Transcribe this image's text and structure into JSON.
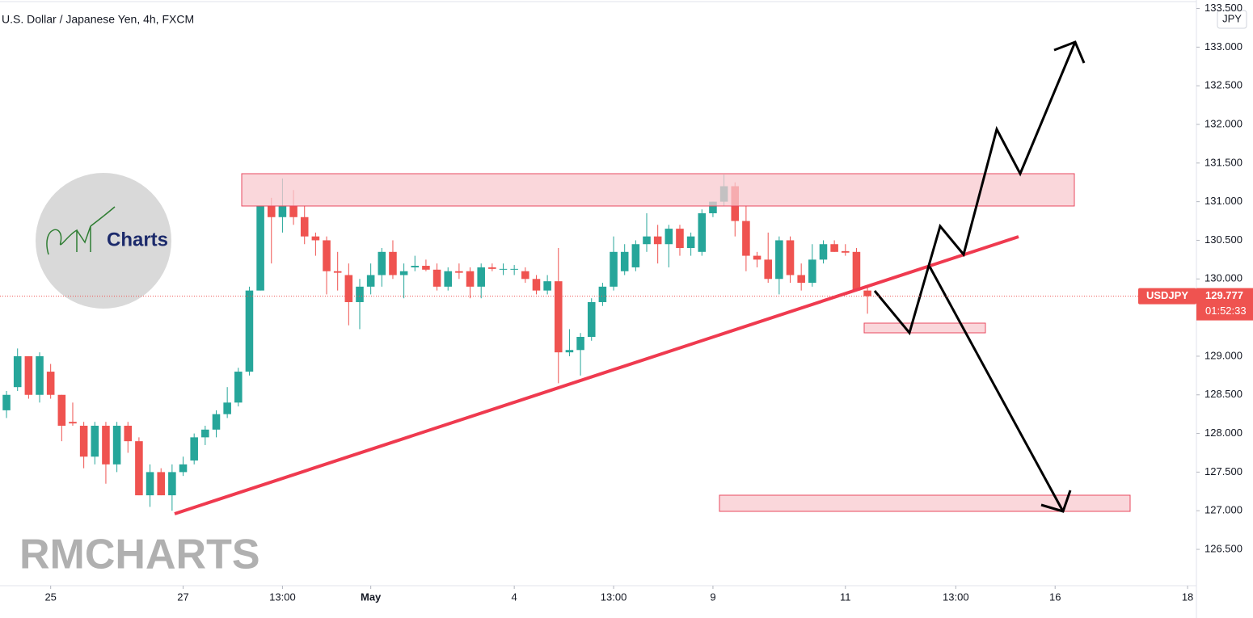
{
  "chart_data": {
    "type": "candlestick",
    "title": "U.S. Dollar / Japanese Yen, 4h, FXCM",
    "currency": "JPY",
    "symbol": "USDJPY",
    "last_price": 129.777,
    "countdown": "01:52:33",
    "watermark": "RMCHARTS",
    "logo_text": "Charts",
    "up_color": "#26a69a",
    "down_color": "#ef5350",
    "ohlc": [
      [
        128.3,
        128.55,
        128.2,
        128.5
      ],
      [
        128.6,
        129.1,
        128.55,
        129.0
      ],
      [
        129.0,
        129.0,
        128.45,
        128.5
      ],
      [
        128.5,
        129.05,
        128.4,
        129.0
      ],
      [
        128.8,
        128.9,
        128.45,
        128.5
      ],
      [
        128.5,
        128.5,
        127.9,
        128.1
      ],
      [
        128.15,
        128.4,
        128.1,
        128.13
      ],
      [
        128.1,
        128.15,
        127.55,
        127.7
      ],
      [
        127.7,
        128.15,
        127.6,
        128.1
      ],
      [
        128.1,
        128.15,
        127.35,
        127.6
      ],
      [
        127.6,
        128.15,
        127.5,
        128.1
      ],
      [
        128.1,
        128.15,
        127.75,
        127.9
      ],
      [
        127.9,
        127.95,
        127.2,
        127.2
      ],
      [
        127.2,
        127.6,
        127.05,
        127.5
      ],
      [
        127.5,
        127.55,
        127.2,
        127.2
      ],
      [
        127.2,
        127.6,
        127.0,
        127.5
      ],
      [
        127.5,
        127.7,
        127.45,
        127.6
      ],
      [
        127.65,
        128.0,
        127.6,
        127.95
      ],
      [
        127.95,
        128.1,
        127.85,
        128.05
      ],
      [
        128.05,
        128.3,
        127.95,
        128.25
      ],
      [
        128.25,
        128.6,
        128.2,
        128.4
      ],
      [
        128.4,
        128.85,
        128.35,
        128.8
      ],
      [
        128.8,
        129.9,
        128.75,
        129.85
      ],
      [
        129.85,
        130.95,
        129.85,
        130.95
      ],
      [
        130.95,
        131.05,
        130.2,
        130.8
      ],
      [
        130.8,
        131.3,
        130.6,
        130.95
      ],
      [
        130.95,
        131.15,
        130.7,
        130.8
      ],
      [
        130.8,
        130.95,
        130.45,
        130.55
      ],
      [
        130.55,
        130.6,
        130.3,
        130.5
      ],
      [
        130.5,
        130.55,
        129.8,
        130.1
      ],
      [
        130.1,
        130.35,
        129.85,
        130.08
      ],
      [
        130.05,
        130.2,
        129.4,
        129.7
      ],
      [
        129.7,
        130.0,
        129.35,
        129.9
      ],
      [
        129.9,
        130.2,
        129.8,
        130.05
      ],
      [
        130.05,
        130.4,
        129.9,
        130.35
      ],
      [
        130.35,
        130.5,
        130.0,
        130.05
      ],
      [
        130.05,
        130.2,
        129.75,
        130.1
      ],
      [
        130.15,
        130.3,
        130.1,
        130.17
      ],
      [
        130.17,
        130.25,
        130.1,
        130.12
      ],
      [
        130.12,
        130.2,
        129.85,
        129.9
      ],
      [
        129.9,
        130.15,
        129.85,
        130.1
      ],
      [
        130.1,
        130.2,
        130.0,
        130.08
      ],
      [
        130.1,
        130.15,
        129.75,
        129.9
      ],
      [
        129.9,
        130.2,
        129.75,
        130.15
      ],
      [
        130.15,
        130.2,
        130.1,
        130.13
      ],
      [
        130.12,
        130.2,
        130.05,
        130.13
      ],
      [
        130.12,
        130.18,
        130.05,
        130.13
      ],
      [
        130.1,
        130.15,
        129.95,
        130.0
      ],
      [
        130.0,
        130.05,
        129.8,
        129.85
      ],
      [
        129.85,
        130.05,
        129.8,
        129.97
      ],
      [
        129.97,
        130.4,
        128.65,
        129.05
      ],
      [
        129.05,
        129.35,
        129.0,
        129.08
      ],
      [
        129.08,
        129.3,
        128.75,
        129.25
      ],
      [
        129.25,
        129.75,
        129.2,
        129.7
      ],
      [
        129.7,
        129.95,
        129.65,
        129.9
      ],
      [
        129.9,
        130.55,
        129.85,
        130.35
      ],
      [
        130.1,
        130.45,
        130.05,
        130.35
      ],
      [
        130.15,
        130.5,
        130.1,
        130.45
      ],
      [
        130.45,
        130.85,
        130.35,
        130.55
      ],
      [
        130.55,
        130.7,
        130.2,
        130.45
      ],
      [
        130.45,
        130.7,
        130.15,
        130.65
      ],
      [
        130.65,
        130.7,
        130.3,
        130.4
      ],
      [
        130.4,
        130.6,
        130.3,
        130.55
      ],
      [
        130.35,
        130.9,
        130.3,
        130.85
      ],
      [
        130.85,
        131.0,
        130.8,
        131.0
      ],
      [
        131.0,
        131.35,
        130.95,
        131.2
      ],
      [
        131.2,
        131.25,
        130.55,
        130.75
      ],
      [
        130.75,
        130.95,
        130.1,
        130.3
      ],
      [
        130.3,
        130.35,
        130.15,
        130.25
      ],
      [
        130.25,
        130.6,
        129.95,
        130.0
      ],
      [
        130.0,
        130.55,
        129.8,
        130.5
      ],
      [
        130.5,
        130.55,
        129.95,
        130.05
      ],
      [
        130.05,
        130.2,
        129.85,
        129.95
      ],
      [
        129.95,
        130.45,
        129.9,
        130.25
      ],
      [
        130.25,
        130.5,
        130.2,
        130.45
      ],
      [
        130.45,
        130.5,
        130.35,
        130.35
      ],
      [
        130.36,
        130.45,
        130.3,
        130.34
      ],
      [
        130.35,
        130.4,
        129.85,
        129.85
      ],
      [
        129.85,
        129.9,
        129.55,
        129.777
      ]
    ],
    "xlim": [
      -0.59,
      107.8
    ],
    "xticks": [
      {
        "value": 4,
        "label": "25"
      },
      {
        "value": 16,
        "label": "27"
      },
      {
        "value": 25,
        "label": "13:00"
      },
      {
        "value": 33,
        "label": "May"
      },
      {
        "value": 46,
        "label": "4"
      },
      {
        "value": 55,
        "label": "13:00"
      },
      {
        "value": 64,
        "label": "9"
      },
      {
        "value": 76,
        "label": "11"
      },
      {
        "value": 86,
        "label": "13:00"
      },
      {
        "value": 95,
        "label": "16"
      },
      {
        "value": 107,
        "label": "18"
      }
    ],
    "ylim": [
      126.03,
      133.61
    ],
    "yticks": [
      {
        "value": 126.5,
        "label": "126.500"
      },
      {
        "value": 127,
        "label": "127.000"
      },
      {
        "value": 127.5,
        "label": "127.500"
      },
      {
        "value": 128,
        "label": "128.000"
      },
      {
        "value": 128.5,
        "label": "128.500"
      },
      {
        "value": 129,
        "label": "129.000"
      },
      {
        "value": 129.5,
        "label": "129.500"
      },
      {
        "value": 130,
        "label": "130.000"
      },
      {
        "value": 130.5,
        "label": "130.500"
      },
      {
        "value": 131,
        "label": "131.000"
      },
      {
        "value": 131.5,
        "label": "131.500"
      },
      {
        "value": 132,
        "label": "132.000"
      },
      {
        "value": 132.5,
        "label": "132.500"
      },
      {
        "value": 133,
        "label": "133.000"
      },
      {
        "value": 133.5,
        "label": "133.500"
      }
    ]
  }
}
